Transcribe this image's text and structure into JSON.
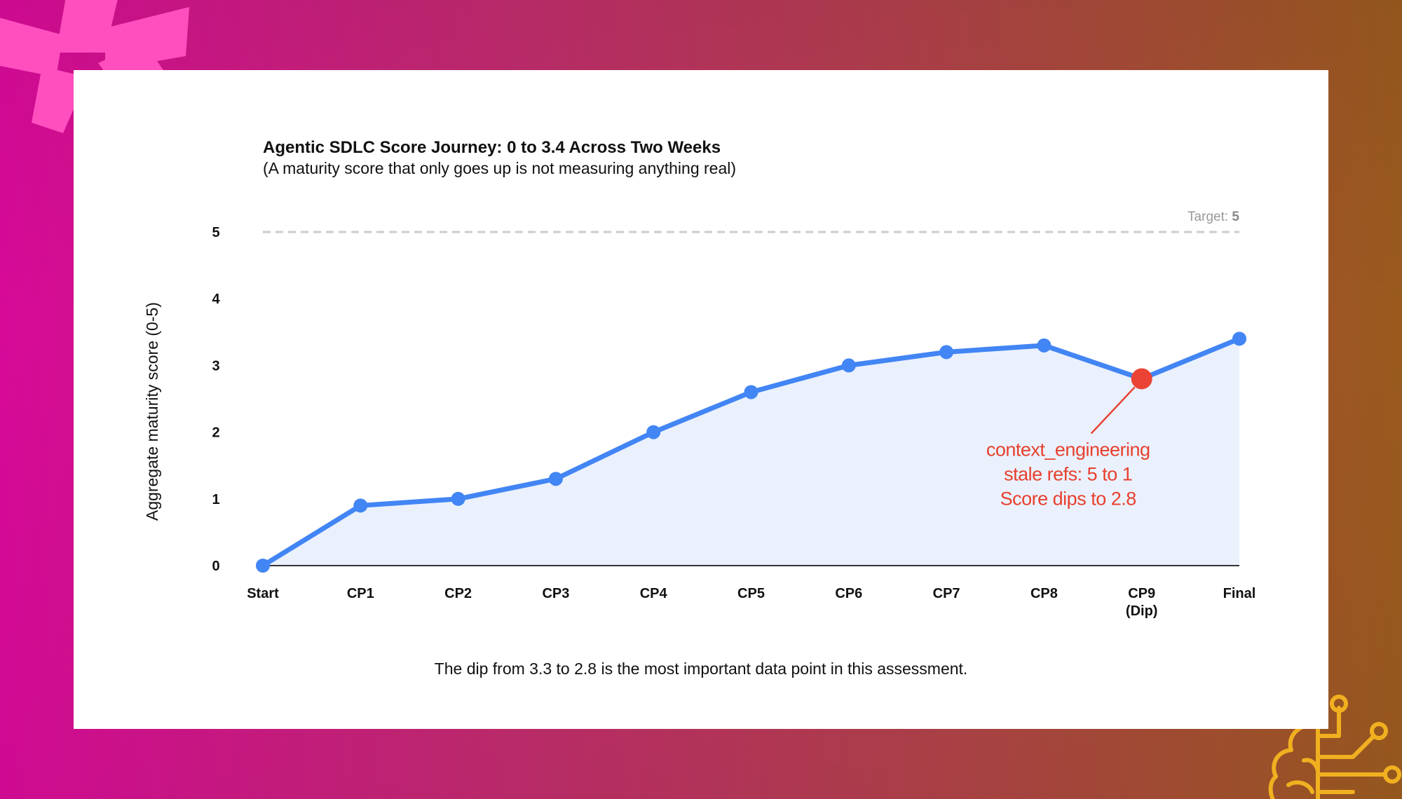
{
  "chart_data": {
    "type": "line",
    "title": "Agentic SDLC Score Journey: 0 to 3.4 Across Two Weeks",
    "subtitle": "(A maturity score that only goes up is not measuring anything real)",
    "xlabel": "",
    "ylabel": "Aggregate maturity score (0-5)",
    "ylim": [
      0,
      5
    ],
    "yticks": [
      "0",
      "1",
      "2",
      "3",
      "4",
      "5"
    ],
    "categories": [
      [
        "Start"
      ],
      [
        "CP1"
      ],
      [
        "CP2"
      ],
      [
        "CP3"
      ],
      [
        "CP4"
      ],
      [
        "CP5"
      ],
      [
        "CP6"
      ],
      [
        "CP7"
      ],
      [
        "CP8"
      ],
      [
        "CP9",
        "(Dip)"
      ],
      [
        "Final"
      ]
    ],
    "values": [
      0,
      0.9,
      1.0,
      1.3,
      2.0,
      2.6,
      3.0,
      3.2,
      3.3,
      2.8,
      3.4
    ],
    "highlight_index": 9,
    "grid": false,
    "area_fill": true,
    "target": {
      "value": 5,
      "label": "Target: ",
      "value_text": "5"
    },
    "annotation": {
      "lines": [
        "context_engineering",
        "stale refs: 5 to 1",
        "Score dips to 2.8"
      ],
      "point_index": 9
    },
    "footnote": "The dip from 3.3 to 2.8 is the most important data point in this assessment.",
    "colors": {
      "line": "#4285f4",
      "area": "#eaf1fd",
      "highlight": "#ea4335",
      "annotation": "#e8402e",
      "target_line": "#cccccc",
      "axis": "#333333"
    }
  },
  "decorations": {
    "top_left": "asterisk-shape",
    "bottom_right": "brain-circuit-icon"
  }
}
